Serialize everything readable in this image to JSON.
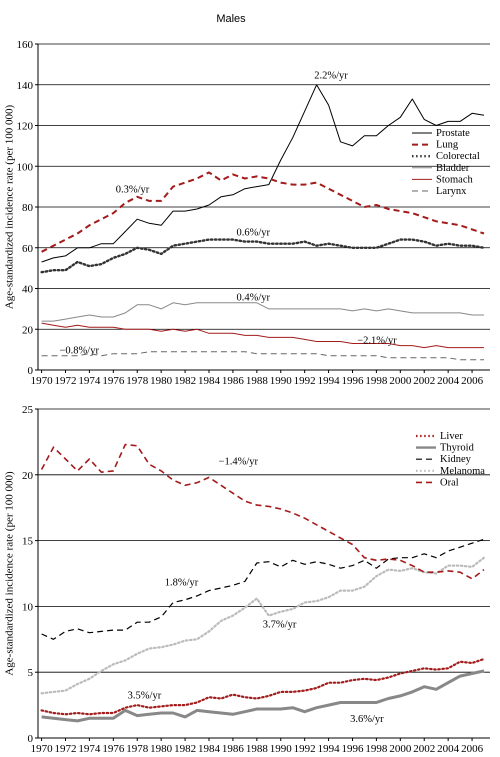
{
  "chart_data": [
    {
      "type": "line",
      "title": "Males",
      "ylabel": "Age-standardized incidence rate (per 100 000)",
      "xlabel": "",
      "x": [
        1970,
        1971,
        1972,
        1973,
        1974,
        1975,
        1976,
        1977,
        1978,
        1979,
        1980,
        1981,
        1982,
        1983,
        1984,
        1985,
        1986,
        1987,
        1988,
        1989,
        1990,
        1991,
        1992,
        1993,
        1994,
        1995,
        1996,
        1997,
        1998,
        1999,
        2000,
        2001,
        2002,
        2003,
        2004,
        2005,
        2006,
        2007
      ],
      "xticks": [
        1970,
        1972,
        1974,
        1976,
        1978,
        1980,
        1982,
        1984,
        1986,
        1988,
        1990,
        1992,
        1994,
        1996,
        1998,
        2000,
        2002,
        2004,
        2006
      ],
      "ylim": [
        0,
        160
      ],
      "yticks": [
        0,
        20,
        40,
        60,
        80,
        100,
        120,
        140,
        160
      ],
      "grid": "horizontal",
      "legend_position": "right",
      "series": [
        {
          "name": "Prostate",
          "color": "#000000",
          "style": "solid",
          "width": 1,
          "values": [
            53,
            55,
            56,
            60,
            60,
            62,
            62,
            68,
            74,
            72,
            71,
            78,
            78,
            79,
            81,
            85,
            86,
            89,
            90,
            91,
            103,
            114,
            127,
            140,
            130,
            112,
            110,
            115,
            115,
            120,
            124,
            133,
            123,
            120,
            122,
            122,
            126,
            125
          ]
        },
        {
          "name": "Lung",
          "color": "#a31b1b",
          "style": "dash",
          "width": 2,
          "values": [
            58,
            61,
            64,
            67,
            71,
            74,
            77,
            82,
            85,
            83,
            83,
            90,
            92,
            94,
            97,
            93,
            96,
            94,
            95,
            94,
            92,
            91,
            91,
            92,
            89,
            86,
            83,
            80,
            81,
            79,
            78,
            77,
            75,
            73,
            72,
            71,
            69,
            67
          ]
        },
        {
          "name": "Colorectal",
          "color": "#333333",
          "style": "dotted",
          "width": 2.4,
          "values": [
            48,
            49,
            49,
            53,
            51,
            52,
            55,
            57,
            60,
            59,
            57,
            61,
            62,
            63,
            64,
            64,
            64,
            63,
            63,
            62,
            62,
            62,
            63,
            61,
            62,
            61,
            60,
            60,
            60,
            62,
            64,
            64,
            63,
            61,
            62,
            61,
            61,
            60
          ]
        },
        {
          "name": "Bladder",
          "color": "#888888",
          "style": "solid",
          "width": 1,
          "values": [
            24,
            24,
            25,
            26,
            27,
            26,
            26,
            28,
            32,
            32,
            30,
            33,
            32,
            33,
            33,
            33,
            33,
            33,
            33,
            30,
            30,
            30,
            30,
            30,
            30,
            30,
            29,
            30,
            29,
            30,
            29,
            28,
            28,
            28,
            28,
            28,
            27,
            27
          ]
        },
        {
          "name": "Stomach",
          "color": "#a31b1b",
          "style": "solid",
          "width": 1,
          "values": [
            23,
            22,
            21,
            22,
            21,
            21,
            21,
            20,
            20,
            20,
            19,
            20,
            19,
            20,
            18,
            18,
            18,
            17,
            17,
            16,
            16,
            16,
            15,
            14,
            14,
            14,
            13,
            13,
            13,
            13,
            12,
            12,
            11,
            12,
            11,
            11,
            11,
            11
          ]
        },
        {
          "name": "Larynx",
          "color": "#666666",
          "style": "dash",
          "width": 1,
          "values": [
            7,
            7,
            7,
            7,
            8,
            7,
            8,
            8,
            8,
            9,
            9,
            9,
            9,
            9,
            9,
            9,
            9,
            9,
            8,
            8,
            8,
            8,
            8,
            8,
            7,
            7,
            7,
            7,
            7,
            6,
            6,
            6,
            6,
            6,
            6,
            5,
            5,
            5
          ]
        }
      ],
      "annotations": [
        {
          "text": "2.2%/yr",
          "x": 1992.8,
          "y": 143
        },
        {
          "text": "0.3%/yr",
          "x": 1976.2,
          "y": 87
        },
        {
          "text": "0.6%/yr",
          "x": 1986.3,
          "y": 66
        },
        {
          "text": "0.4%/yr",
          "x": 1986.3,
          "y": 34
        },
        {
          "text": "−2.1%/yr",
          "x": 1996.4,
          "y": 13
        },
        {
          "text": "−0.8%/yr",
          "x": 1971.5,
          "y": 8
        }
      ]
    },
    {
      "type": "line",
      "title": "",
      "ylabel": "Age-standardized incidence rate (per 100 000)",
      "xlabel": "",
      "x": [
        1970,
        1971,
        1972,
        1973,
        1974,
        1975,
        1976,
        1977,
        1978,
        1979,
        1980,
        1981,
        1982,
        1983,
        1984,
        1985,
        1986,
        1987,
        1988,
        1989,
        1990,
        1991,
        1992,
        1993,
        1994,
        1995,
        1996,
        1997,
        1998,
        1999,
        2000,
        2001,
        2002,
        2003,
        2004,
        2005,
        2006,
        2007
      ],
      "xticks": [
        1970,
        1972,
        1974,
        1976,
        1978,
        1980,
        1982,
        1984,
        1986,
        1988,
        1990,
        1992,
        1994,
        1996,
        1998,
        2000,
        2002,
        2004,
        2006
      ],
      "ylim": [
        0,
        25
      ],
      "yticks": [
        0,
        5,
        10,
        15,
        20,
        25
      ],
      "grid": "horizontal",
      "legend_position": "top-right",
      "series": [
        {
          "name": "Liver",
          "color": "#a31b1b",
          "style": "dotted",
          "width": 2.2,
          "values": [
            2.1,
            1.9,
            1.8,
            1.9,
            1.8,
            1.9,
            1.9,
            2.3,
            2.5,
            2.3,
            2.4,
            2.5,
            2.5,
            2.7,
            3.1,
            3.0,
            3.3,
            3.1,
            3.0,
            3.2,
            3.5,
            3.5,
            3.6,
            3.8,
            4.2,
            4.2,
            4.4,
            4.5,
            4.4,
            4.6,
            4.9,
            5.1,
            5.3,
            5.2,
            5.3,
            5.8,
            5.7,
            6.0
          ]
        },
        {
          "name": "Thyroid",
          "color": "#888888",
          "style": "solid",
          "width": 3,
          "values": [
            1.6,
            1.5,
            1.4,
            1.3,
            1.5,
            1.5,
            1.5,
            2.1,
            1.7,
            1.8,
            1.9,
            1.9,
            1.6,
            2.1,
            2.0,
            1.9,
            1.8,
            2.0,
            2.2,
            2.2,
            2.2,
            2.3,
            2.0,
            2.3,
            2.5,
            2.7,
            2.7,
            2.7,
            2.7,
            3.0,
            3.2,
            3.5,
            3.9,
            3.7,
            4.2,
            4.7,
            4.9,
            5.1
          ]
        },
        {
          "name": "Kidney",
          "color": "#000000",
          "style": "dash",
          "width": 1.2,
          "values": [
            7.9,
            7.5,
            8.1,
            8.3,
            8.0,
            8.1,
            8.2,
            8.2,
            8.8,
            8.8,
            9.2,
            10.3,
            10.5,
            10.8,
            11.2,
            11.4,
            11.6,
            11.9,
            13.3,
            13.4,
            13.0,
            13.5,
            13.2,
            13.4,
            13.2,
            12.9,
            13.1,
            13.5,
            12.9,
            13.6,
            13.7,
            13.7,
            14.0,
            13.7,
            14.2,
            14.5,
            14.8,
            15.1
          ]
        },
        {
          "name": "Melanoma",
          "color": "#bbbbbb",
          "style": "dotted",
          "width": 2.2,
          "values": [
            3.4,
            3.5,
            3.6,
            4.1,
            4.5,
            5.1,
            5.6,
            5.9,
            6.4,
            6.8,
            6.9,
            7.1,
            7.4,
            7.5,
            8.1,
            8.9,
            9.3,
            9.9,
            10.6,
            9.3,
            9.6,
            9.8,
            10.3,
            10.4,
            10.7,
            11.2,
            11.2,
            11.5,
            12.3,
            12.8,
            12.7,
            12.9,
            12.6,
            12.5,
            13.1,
            13.1,
            13.0,
            13.7
          ]
        },
        {
          "name": "Oral",
          "color": "#a31b1b",
          "style": "dash",
          "width": 1.6,
          "values": [
            20.4,
            22.1,
            21.2,
            20.3,
            21.2,
            20.2,
            20.3,
            22.3,
            22.2,
            20.8,
            20.3,
            19.6,
            19.2,
            19.4,
            19.8,
            19.2,
            18.6,
            18.0,
            17.7,
            17.6,
            17.4,
            17.1,
            16.7,
            16.2,
            15.7,
            15.2,
            14.7,
            13.7,
            13.5,
            13.6,
            13.5,
            13.1,
            12.6,
            12.6,
            12.7,
            12.6,
            12.1,
            12.8
          ]
        }
      ],
      "annotations": [
        {
          "text": "−1.4%/yr",
          "x": 1984.8,
          "y": 20.8
        },
        {
          "text": "1.8%/yr",
          "x": 1980.3,
          "y": 11.6
        },
        {
          "text": "3.7%/yr",
          "x": 1988.5,
          "y": 8.4
        },
        {
          "text": "3.5%/yr",
          "x": 1977.2,
          "y": 3.0
        },
        {
          "text": "3.6%/yr",
          "x": 1995.8,
          "y": 1.2
        }
      ]
    }
  ]
}
